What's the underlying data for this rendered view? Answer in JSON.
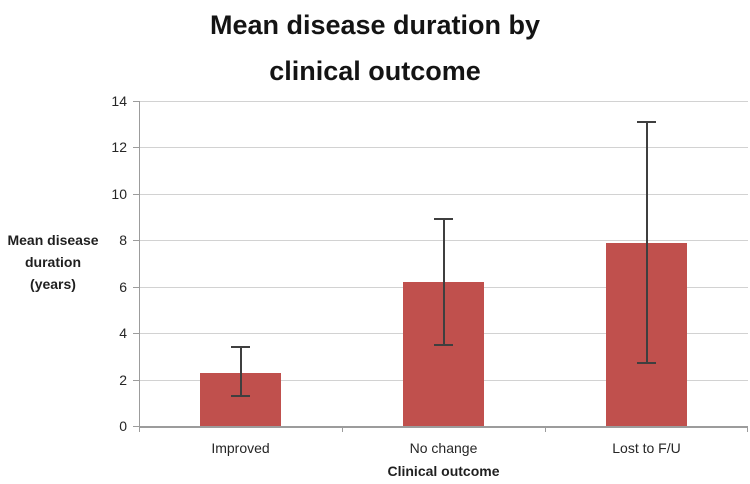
{
  "figure": {
    "background": "#ffffff"
  },
  "chart_data": {
    "type": "bar",
    "title": "Mean disease duration by clinical outcome",
    "title_lines": [
      "Mean disease duration by",
      "clinical outcome"
    ],
    "xlabel": "Clinical outcome",
    "ylabel": "Mean disease duration (years)",
    "ylabel_lines": [
      "Mean disease",
      "duration",
      "(years)"
    ],
    "categories": [
      "Improved",
      "No change",
      "Lost to F/U"
    ],
    "values": [
      2.3,
      6.2,
      7.9
    ],
    "error_low": [
      1.3,
      3.5,
      2.7
    ],
    "error_high": [
      3.4,
      8.9,
      13.1
    ],
    "ylim": [
      0,
      14
    ],
    "yticks": [
      0,
      2,
      4,
      6,
      8,
      10,
      12,
      14
    ],
    "grid": "horizontal",
    "legend": "none",
    "colors": {
      "bar": "#c0504d",
      "error_bar": "#3f3f3f",
      "gridline": "#d2d2d2",
      "axis": "#9c9c9c",
      "text": "#262626",
      "title_text": "#141414"
    }
  }
}
